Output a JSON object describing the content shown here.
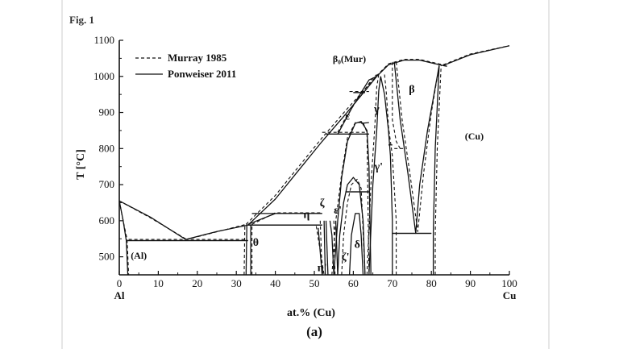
{
  "figure": {
    "label": "Fig. 1",
    "caption": "(a)"
  },
  "chart_data": {
    "type": "line",
    "xlabel": "at.% (Cu)",
    "ylabel": "T [°C]",
    "xlim": [
      0,
      100
    ],
    "ylim": [
      450,
      1100
    ],
    "x_ticks": [
      "0",
      "10",
      "20",
      "30",
      "40",
      "50",
      "60",
      "70",
      "80",
      "90",
      "100"
    ],
    "y_ticks": [
      "500",
      "600",
      "700",
      "800",
      "900",
      "1000",
      "1100"
    ],
    "x_end_labels": {
      "left": "Al",
      "right": "Cu"
    },
    "legend": {
      "placement": "top-left",
      "entries": [
        {
          "name": "Murray 1985",
          "style": "dashed"
        },
        {
          "name": "Ponweiser 2011",
          "style": "solid"
        }
      ]
    },
    "phase_labels": [
      {
        "text": "(Al)",
        "x": 5,
        "y": 495
      },
      {
        "text": "θ",
        "x": 35,
        "y": 530
      },
      {
        "text": "η",
        "x": 48,
        "y": 608
      },
      {
        "text": "ζ",
        "x": 52,
        "y": 640
      },
      {
        "text": "ε'",
        "x": 56,
        "y": 620
      },
      {
        "text": "η'",
        "x": 52,
        "y": 460
      },
      {
        "text": "ζ'",
        "x": 58,
        "y": 490
      },
      {
        "text": "δ",
        "x": 61,
        "y": 525
      },
      {
        "text": "ε",
        "x": 58.5,
        "y": 880
      },
      {
        "text": "γ",
        "x": 66,
        "y": 900
      },
      {
        "text": "γ'",
        "x": 66.5,
        "y": 740
      },
      {
        "text": "β",
        "x": 75,
        "y": 955
      },
      {
        "text": "β₀(Mur)",
        "x": 59,
        "y": 1040
      },
      {
        "text": "(Cu)",
        "x": 91,
        "y": 825
      }
    ],
    "series": [
      {
        "name": "Ponweiser 2011",
        "style": "solid",
        "lines": [
          [
            [
              0,
              655
            ],
            [
              8,
              610
            ],
            [
              17,
              548
            ]
          ],
          [
            [
              17,
              548
            ],
            [
              25,
              570
            ],
            [
              33,
              588
            ]
          ],
          [
            [
              33,
              588
            ],
            [
              40,
              660
            ],
            [
              46,
              740
            ],
            [
              52,
              820
            ],
            [
              58,
              895
            ],
            [
              63,
              960
            ],
            [
              66,
              1000
            ],
            [
              69,
              1032
            ],
            [
              73,
              1045
            ],
            [
              77,
              1045
            ],
            [
              81,
              1035
            ],
            [
              83,
              1030
            ],
            [
              90,
              1060
            ],
            [
              100,
              1085
            ]
          ],
          [
            [
              83,
              1030
            ],
            [
              84,
              1028
            ]
          ],
          [
            [
              0,
              655
            ],
            [
              1,
              600
            ],
            [
              1.8,
              545
            ],
            [
              2.2,
              450
            ]
          ],
          [
            [
              2.2,
              545
            ],
            [
              33,
              545
            ]
          ],
          [
            [
              32.5,
              450
            ],
            [
              32.7,
              590
            ]
          ],
          [
            [
              33.7,
              450
            ],
            [
              33.7,
              590
            ]
          ],
          [
            [
              33,
              590
            ],
            [
              40,
              620
            ],
            [
              52,
              620
            ]
          ],
          [
            [
              33,
              588
            ],
            [
              52,
              588
            ]
          ],
          [
            [
              51,
              580
            ],
            [
              52,
              450
            ]
          ],
          [
            [
              52.5,
              600
            ],
            [
              52.8,
              450
            ]
          ],
          [
            [
              53,
              600
            ],
            [
              53.5,
              450
            ]
          ],
          [
            [
              54,
              600
            ],
            [
              54.5,
              560
            ],
            [
              55,
              450
            ]
          ],
          [
            [
              55.5,
              600
            ],
            [
              56,
              450
            ]
          ],
          [
            [
              56,
              450
            ],
            [
              56.5,
              560
            ],
            [
              57.5,
              650
            ],
            [
              58.5,
              700
            ],
            [
              60,
              720
            ],
            [
              61.5,
              700
            ],
            [
              62.5,
              600
            ],
            [
              63,
              450
            ]
          ],
          [
            [
              59,
              450
            ],
            [
              59.5,
              560
            ],
            [
              60.5,
              620
            ],
            [
              61.5,
              620
            ],
            [
              62,
              560
            ],
            [
              62.5,
              450
            ]
          ],
          [
            [
              58,
              680
            ],
            [
              64,
              680
            ]
          ],
          [
            [
              55,
              450
            ],
            [
              56,
              600
            ],
            [
              57,
              720
            ],
            [
              58.5,
              820
            ],
            [
              60.5,
              870
            ],
            [
              62,
              875
            ],
            [
              63.5,
              850
            ],
            [
              64,
              750
            ],
            [
              64.5,
              450
            ]
          ],
          [
            [
              53,
              840
            ],
            [
              64,
              840
            ]
          ],
          [
            [
              56,
              840
            ],
            [
              58,
              880
            ],
            [
              60,
              920
            ],
            [
              62,
              955
            ],
            [
              64,
              990
            ],
            [
              66,
              1000
            ]
          ],
          [
            [
              60,
              955
            ],
            [
              63,
              955
            ]
          ],
          [
            [
              62,
              870
            ],
            [
              64,
              872
            ]
          ],
          [
            [
              64,
              450
            ],
            [
              65,
              700
            ],
            [
              66,
              850
            ],
            [
              66.5,
              960
            ],
            [
              67,
              1000
            ]
          ],
          [
            [
              67,
              1000
            ],
            [
              68,
              950
            ],
            [
              69,
              850
            ],
            [
              69.5,
              780
            ],
            [
              70,
              600
            ],
            [
              70,
              450
            ]
          ],
          [
            [
              69,
              810
            ],
            [
              70,
              810
            ]
          ],
          [
            [
              70.5,
              1040
            ],
            [
              72,
              880
            ],
            [
              74,
              730
            ],
            [
              76,
              565
            ],
            [
              77,
              700
            ],
            [
              79,
              850
            ],
            [
              82,
              1030
            ]
          ],
          [
            [
              70,
              565
            ],
            [
              80,
              565
            ]
          ],
          [
            [
              80.5,
              450
            ],
            [
              80.5,
              565
            ],
            [
              81,
              800
            ],
            [
              82,
              1030
            ]
          ]
        ]
      },
      {
        "name": "Murray 1985",
        "style": "dashed",
        "lines": [
          [
            [
              0,
              655
            ],
            [
              8,
              608
            ],
            [
              17.3,
              548
            ]
          ],
          [
            [
              17.3,
              548
            ],
            [
              26,
              572
            ],
            [
              32.5,
              590
            ]
          ],
          [
            [
              32.5,
              590
            ],
            [
              40,
              670
            ],
            [
              46,
              750
            ],
            [
              52,
              830
            ],
            [
              58,
              905
            ],
            [
              63,
              965
            ],
            [
              66,
              1002
            ],
            [
              69,
              1035
            ],
            [
              73,
              1047
            ],
            [
              77,
              1047
            ],
            [
              81,
              1037
            ],
            [
              83,
              1032
            ],
            [
              90,
              1062
            ],
            [
              100,
              1085
            ]
          ],
          [
            [
              0,
              655
            ],
            [
              1,
              600
            ],
            [
              2,
              548
            ],
            [
              2.4,
              450
            ]
          ],
          [
            [
              2.4,
              548
            ],
            [
              32.5,
              548
            ]
          ],
          [
            [
              32,
              450
            ],
            [
              32.2,
              590
            ]
          ],
          [
            [
              34,
              450
            ],
            [
              34,
              590
            ]
          ],
          [
            [
              34,
              590
            ],
            [
              40,
              622
            ],
            [
              52,
              622
            ]
          ],
          [
            [
              50.5,
              585
            ],
            [
              52.5,
              450
            ]
          ],
          [
            [
              51.5,
              600
            ],
            [
              52,
              450
            ]
          ],
          [
            [
              55,
              600
            ],
            [
              55.3,
              450
            ]
          ],
          [
            [
              57,
              450
            ],
            [
              57.5,
              560
            ],
            [
              58.5,
              650
            ],
            [
              59.5,
              700
            ],
            [
              61,
              715
            ],
            [
              62,
              690
            ],
            [
              63,
              450
            ]
          ],
          [
            [
              54.5,
              450
            ],
            [
              55.5,
              600
            ],
            [
              57,
              730
            ],
            [
              58.5,
              830
            ],
            [
              60.5,
              872
            ],
            [
              62.5,
              872
            ],
            [
              63.5,
              845
            ],
            [
              64,
              450
            ]
          ],
          [
            [
              52,
              845
            ],
            [
              63,
              845
            ]
          ],
          [
            [
              56,
              845
            ],
            [
              58,
              885
            ],
            [
              61,
              935
            ],
            [
              63,
              965
            ],
            [
              65,
              995
            ],
            [
              66,
              1005
            ]
          ],
          [
            [
              59,
              958
            ],
            [
              64,
              958
            ]
          ],
          [
            [
              63.5,
              450
            ],
            [
              64.5,
              700
            ],
            [
              65.5,
              860
            ],
            [
              66,
              970
            ],
            [
              66.5,
              1005
            ]
          ],
          [
            [
              68,
              1005
            ],
            [
              68.5,
              950
            ],
            [
              69,
              860
            ],
            [
              70,
              780
            ],
            [
              71,
              600
            ],
            [
              71,
              450
            ]
          ],
          [
            [
              70.5,
              800
            ],
            [
              73,
              800
            ]
          ],
          [
            [
              71,
              1040
            ],
            [
              72.5,
              880
            ],
            [
              74.5,
              730
            ],
            [
              76.5,
              570
            ],
            [
              78,
              730
            ],
            [
              80,
              900
            ],
            [
              82,
              1030
            ]
          ],
          [
            [
              81,
              450
            ],
            [
              81,
              565
            ],
            [
              81.5,
              800
            ],
            [
              82.5,
              1030
            ]
          ],
          [
            [
              70,
              1040
            ],
            [
              70,
              880
            ],
            [
              71,
              820
            ],
            [
              72,
              800
            ]
          ]
        ]
      }
    ],
    "horizontal_tie_lines": [
      {
        "y": 545,
        "x": [
          2,
          33
        ],
        "style": "solid"
      },
      {
        "y": 588,
        "x": [
          33,
          52
        ],
        "style": "solid"
      },
      {
        "y": 620,
        "x": [
          34,
          52
        ],
        "style": "solid"
      },
      {
        "y": 840,
        "x": [
          53,
          64
        ],
        "style": "solid"
      },
      {
        "y": 955,
        "x": [
          60,
          63
        ],
        "style": "solid"
      },
      {
        "y": 680,
        "x": [
          58,
          64
        ],
        "style": "solid"
      },
      {
        "y": 565,
        "x": [
          70,
          80
        ],
        "style": "solid"
      }
    ]
  }
}
